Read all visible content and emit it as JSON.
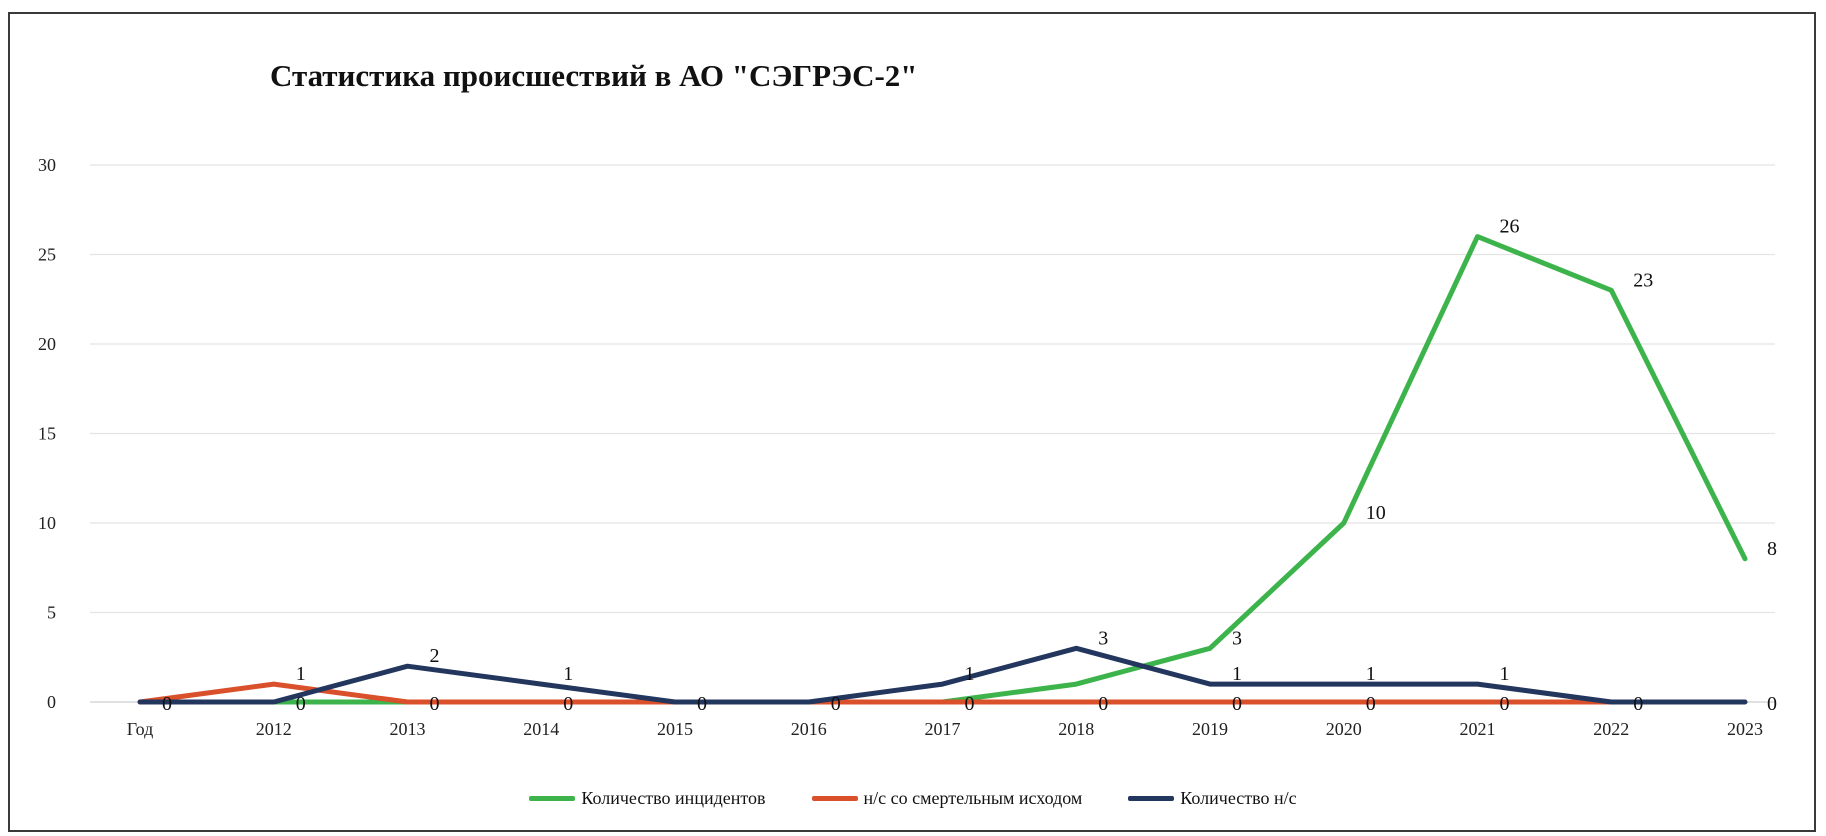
{
  "chart_data": {
    "type": "line",
    "title": "Статистика происшествий в АО \"СЭГРЭС-2\"",
    "xlabel": "",
    "ylabel": "",
    "categories": [
      "Год",
      "2012",
      "2013",
      "2014",
      "2015",
      "2016",
      "2017",
      "2018",
      "2019",
      "2020",
      "2021",
      "2022",
      "2023"
    ],
    "ylim": [
      0,
      30
    ],
    "yticks": [
      "0",
      "5",
      "10",
      "15",
      "20",
      "25",
      "30"
    ],
    "grid": true,
    "legend_position": "bottom",
    "series": [
      {
        "name": "Количество инцидентов",
        "color": "#3cb44b",
        "values": [
          null,
          0,
          0,
          null,
          null,
          null,
          0,
          1,
          3,
          10,
          26,
          23,
          8
        ],
        "labels": [
          "",
          "0",
          "0",
          "",
          "",
          "",
          "",
          "",
          "3",
          "10",
          "26",
          "23",
          "8"
        ]
      },
      {
        "name": "н/с со смертельным исходом",
        "color": "#d9502a",
        "values": [
          0,
          1,
          0,
          0,
          0,
          0,
          0,
          0,
          0,
          0,
          0,
          0,
          null
        ],
        "labels": [
          "",
          "1",
          "",
          "0",
          "",
          "",
          "0",
          "0",
          "0",
          "0",
          "0",
          "",
          ""
        ]
      },
      {
        "name": "Количество н/с",
        "color": "#23365e",
        "values": [
          0,
          0,
          2,
          1,
          0,
          0,
          1,
          3,
          1,
          1,
          1,
          0,
          0
        ],
        "labels": [
          "0",
          "",
          "2",
          "1",
          "0",
          "0",
          "1",
          "3",
          "1",
          "1",
          "1",
          "0",
          "0"
        ]
      }
    ]
  }
}
